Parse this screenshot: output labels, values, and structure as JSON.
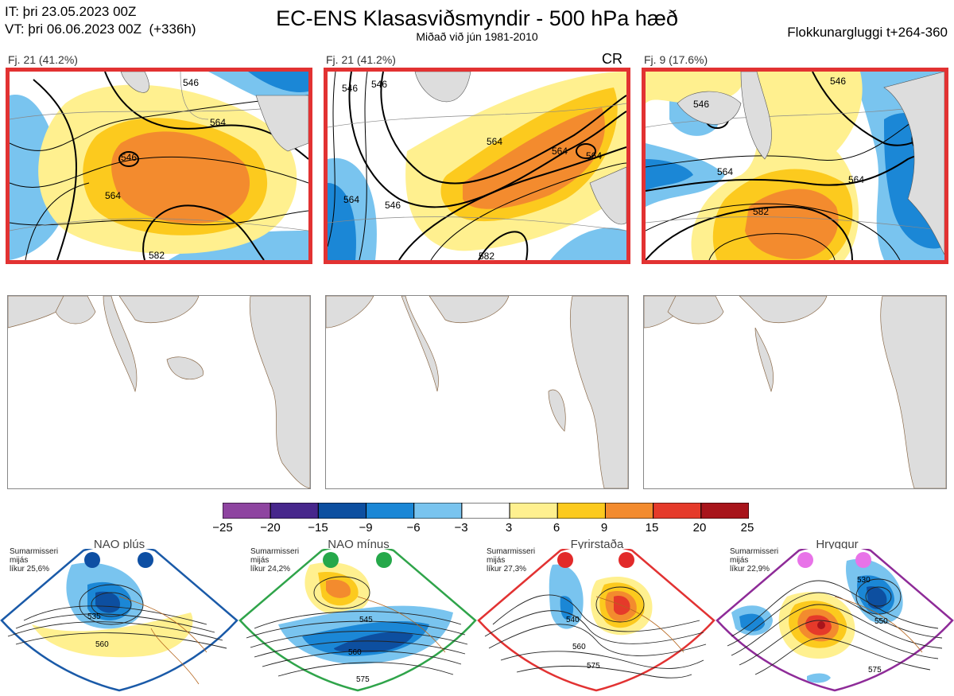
{
  "header": {
    "it_line": "IT: þri 23.05.2023 00Z",
    "vt_line": "VT: þri 06.06.2023 00Z  (+336h)",
    "title": "EC-ENS Klasasviðsmyndir - 500 hPa hæð",
    "subtitle": "Miðað við jún 1981-2010",
    "window": "Flokkunargluggi t+264-360"
  },
  "clusters": [
    {
      "label": "Fj. 21 (41.2%)",
      "tag": "",
      "contours": [
        "546",
        "564",
        "546",
        "564",
        "582"
      ]
    },
    {
      "label": "Fj. 21 (41.2%)",
      "tag": "CR",
      "contours": [
        "546",
        "564",
        "546",
        "564",
        "564",
        "564",
        "582",
        "546"
      ]
    },
    {
      "label": "Fj. 9 (17.6%)",
      "tag": "",
      "contours": [
        "546",
        "546",
        "564",
        "564",
        "582"
      ]
    }
  ],
  "colorbar": {
    "ticks": [
      "−25",
      "−20",
      "−15",
      "−9",
      "−6",
      "−3",
      "3",
      "6",
      "9",
      "15",
      "20",
      "25"
    ],
    "colors": [
      "#8e44a0",
      "#47278c",
      "#0d4fa0",
      "#1b87d6",
      "#79c4ef",
      "#ffffff",
      "#fff08f",
      "#fcca1e",
      "#f38b2e",
      "#e53a2a",
      "#a8141b"
    ]
  },
  "regimes": [
    {
      "name": "NAO plús",
      "note": "Sumarmisseri\nmijás\nlíkur 25,6%",
      "frame_color": "#1a5aa8",
      "dot_color": "#0e4fa3",
      "contours": [
        "535",
        "560"
      ]
    },
    {
      "name": "NAO mínus",
      "note": "Sumarmisseri\nmijás\nlíkur 24,2%",
      "frame_color": "#2fa44a",
      "dot_color": "#25a84a",
      "contours": [
        "545",
        "560",
        "575"
      ]
    },
    {
      "name": "Fyrirstaða",
      "note": "Sumarmisseri\nmijás\nlíkur 27,3%",
      "frame_color": "#e23232",
      "dot_color": "#e22a2a",
      "contours": [
        "540",
        "560",
        "575"
      ]
    },
    {
      "name": "Hryggur",
      "note": "Sumarmisseri\nmijás\nlíkur 22,9%",
      "frame_color": "#8e2b98",
      "dot_color": "#e873e8",
      "contours": [
        "530",
        "550",
        "575"
      ]
    }
  ]
}
